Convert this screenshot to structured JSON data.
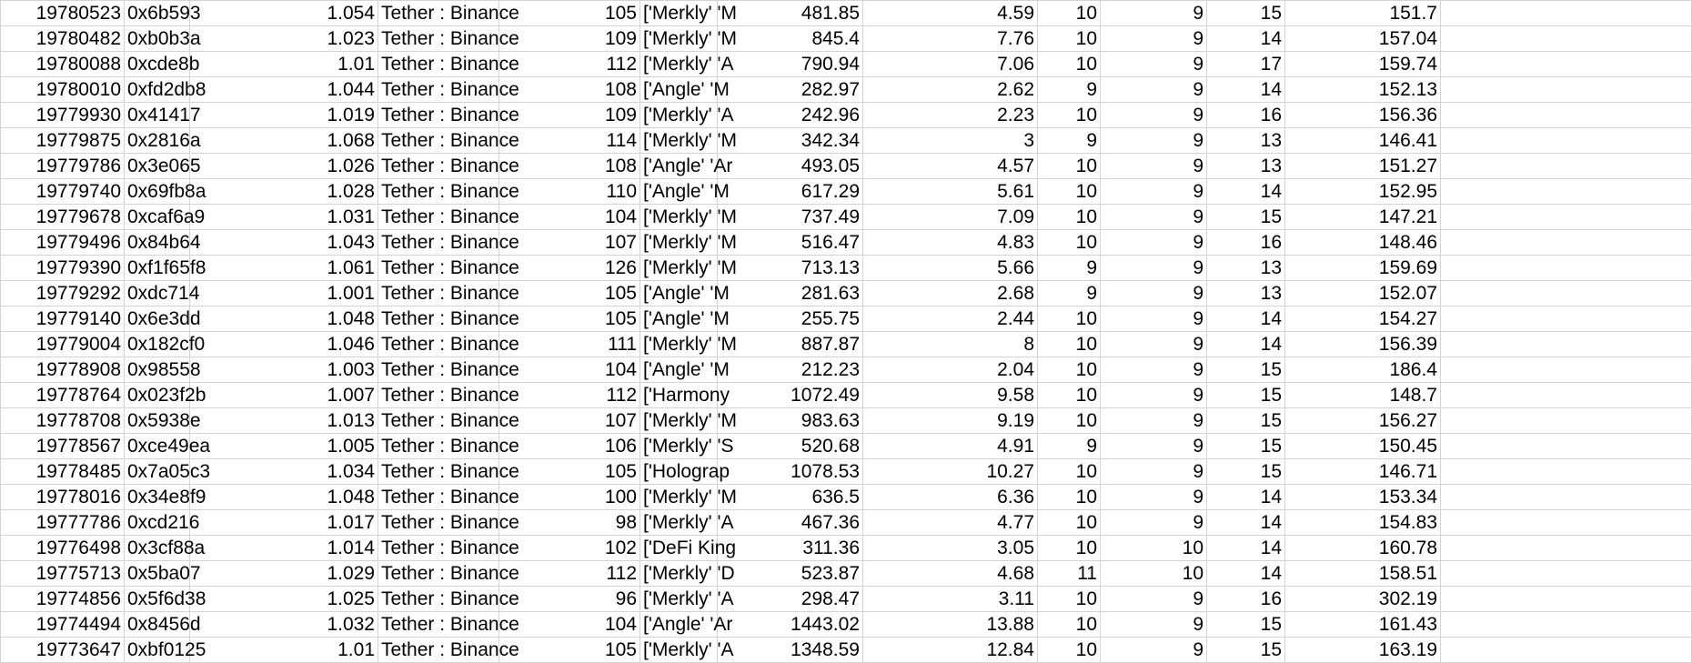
{
  "sheet": {
    "rows": [
      [
        "19780523",
        "0x6b593",
        "1.054",
        "Tether : Binance",
        "105",
        "['Merkly' 'M",
        "481.85",
        "4.59",
        "10",
        "9",
        "15",
        "151.7"
      ],
      [
        "19780482",
        "0xb0b3a",
        "1.023",
        "Tether : Binance",
        "109",
        "['Merkly' 'M",
        "845.4",
        "7.76",
        "10",
        "9",
        "14",
        "157.04"
      ],
      [
        "19780088",
        "0xcde8b",
        "1.01",
        "Tether : Binance",
        "112",
        "['Merkly' 'A",
        "790.94",
        "7.06",
        "10",
        "9",
        "17",
        "159.74"
      ],
      [
        "19780010",
        "0xfd2db8",
        "1.044",
        "Tether : Binance",
        "108",
        "['Angle' 'M",
        "282.97",
        "2.62",
        "9",
        "9",
        "14",
        "152.13"
      ],
      [
        "19779930",
        "0x41417",
        "1.019",
        "Tether : Binance",
        "109",
        "['Merkly' 'A",
        "242.96",
        "2.23",
        "10",
        "9",
        "16",
        "156.36"
      ],
      [
        "19779875",
        "0x2816a",
        "1.068",
        "Tether : Binance",
        "114",
        "['Merkly' 'M",
        "342.34",
        "3",
        "9",
        "9",
        "13",
        "146.41"
      ],
      [
        "19779786",
        "0x3e065",
        "1.026",
        "Tether : Binance",
        "108",
        "['Angle' 'Ar",
        "493.05",
        "4.57",
        "10",
        "9",
        "13",
        "151.27"
      ],
      [
        "19779740",
        "0x69fb8a",
        "1.028",
        "Tether : Binance",
        "110",
        "['Angle' 'M",
        "617.29",
        "5.61",
        "10",
        "9",
        "14",
        "152.95"
      ],
      [
        "19779678",
        "0xcaf6a9",
        "1.031",
        "Tether : Binance",
        "104",
        "['Merkly' 'M",
        "737.49",
        "7.09",
        "10",
        "9",
        "15",
        "147.21"
      ],
      [
        "19779496",
        "0x84b64",
        "1.043",
        "Tether : Binance",
        "107",
        "['Merkly' 'M",
        "516.47",
        "4.83",
        "10",
        "9",
        "16",
        "148.46"
      ],
      [
        "19779390",
        "0xf1f65f8",
        "1.061",
        "Tether : Binance",
        "126",
        "['Merkly' 'M",
        "713.13",
        "5.66",
        "9",
        "9",
        "13",
        "159.69"
      ],
      [
        "19779292",
        "0xdc714",
        "1.001",
        "Tether : Binance",
        "105",
        "['Angle' 'M",
        "281.63",
        "2.68",
        "9",
        "9",
        "13",
        "152.07"
      ],
      [
        "19779140",
        "0x6e3dd",
        "1.048",
        "Tether : Binance",
        "105",
        "['Angle' 'M",
        "255.75",
        "2.44",
        "10",
        "9",
        "14",
        "154.27"
      ],
      [
        "19779004",
        "0x182cf0",
        "1.046",
        "Tether : Binance",
        "111",
        "['Merkly' 'M",
        "887.87",
        "8",
        "10",
        "9",
        "14",
        "156.39"
      ],
      [
        "19778908",
        "0x98558",
        "1.003",
        "Tether : Binance",
        "104",
        "['Angle' 'M",
        "212.23",
        "2.04",
        "10",
        "9",
        "15",
        "186.4"
      ],
      [
        "19778764",
        "0x023f2b",
        "1.007",
        "Tether : Binance",
        "112",
        "['Harmony",
        "1072.49",
        "9.58",
        "10",
        "9",
        "15",
        "148.7"
      ],
      [
        "19778708",
        "0x5938e",
        "1.013",
        "Tether : Binance",
        "107",
        "['Merkly' 'M",
        "983.63",
        "9.19",
        "10",
        "9",
        "15",
        "156.27"
      ],
      [
        "19778567",
        "0xce49ea",
        "1.005",
        "Tether : Binance",
        "106",
        "['Merkly' 'S",
        "520.68",
        "4.91",
        "9",
        "9",
        "15",
        "150.45"
      ],
      [
        "19778485",
        "0x7a05c3",
        "1.034",
        "Tether : Binance",
        "105",
        "['Holograp",
        "1078.53",
        "10.27",
        "10",
        "9",
        "15",
        "146.71"
      ],
      [
        "19778016",
        "0x34e8f9",
        "1.048",
        "Tether : Binance",
        "100",
        "['Merkly' 'M",
        "636.5",
        "6.36",
        "10",
        "9",
        "14",
        "153.34"
      ],
      [
        "19777786",
        "0xcd216",
        "1.017",
        "Tether : Binance",
        "98",
        "['Merkly' 'A",
        "467.36",
        "4.77",
        "10",
        "9",
        "14",
        "154.83"
      ],
      [
        "19776498",
        "0x3cf88a",
        "1.014",
        "Tether : Binance",
        "102",
        "['DeFi King",
        "311.36",
        "3.05",
        "10",
        "10",
        "14",
        "160.78"
      ],
      [
        "19775713",
        "0x5ba07",
        "1.029",
        "Tether : Binance",
        "112",
        "['Merkly' 'D",
        "523.87",
        "4.68",
        "11",
        "10",
        "14",
        "158.51"
      ],
      [
        "19774856",
        "0x5f6d38",
        "1.025",
        "Tether : Binance",
        "96",
        "['Merkly' 'A",
        "298.47",
        "3.11",
        "10",
        "9",
        "16",
        "302.19"
      ],
      [
        "19774494",
        "0x8456d",
        "1.032",
        "Tether : Binance",
        "104",
        "['Angle' 'Ar",
        "1443.02",
        "13.88",
        "10",
        "9",
        "15",
        "161.43"
      ],
      [
        "19773647",
        "0xbf0125",
        "1.01",
        "Tether : Binance",
        "105",
        "['Merkly' 'A",
        "1348.59",
        "12.84",
        "10",
        "9",
        "15",
        "163.19"
      ]
    ]
  }
}
